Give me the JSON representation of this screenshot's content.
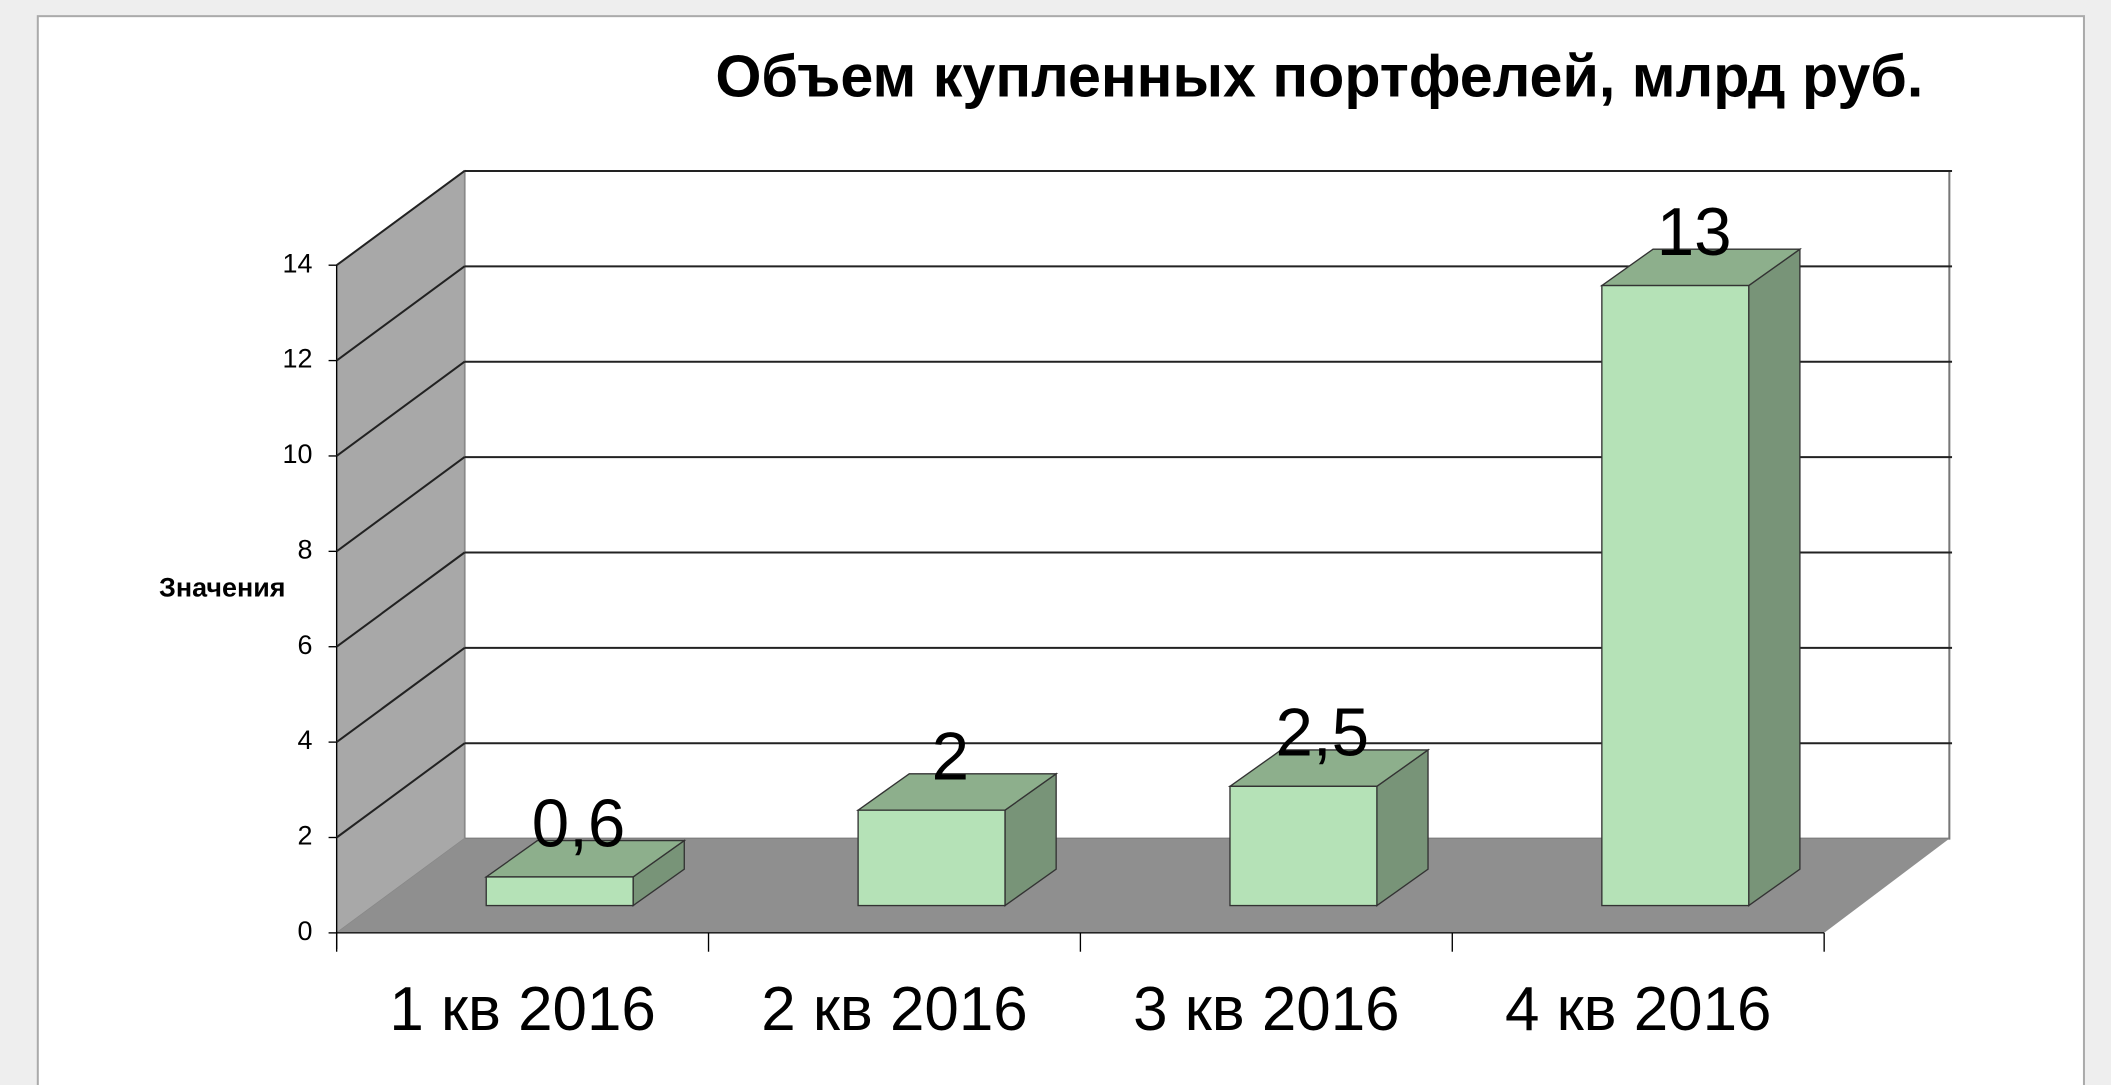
{
  "chart_data": {
    "type": "bar3d",
    "title": "Объем купленных портфелей, млрд руб.",
    "y_label": "Значения",
    "categories": [
      "1 кв 2016",
      "2 кв 2016",
      "3 кв 2016",
      "4 кв 2016"
    ],
    "values": [
      0.6,
      2,
      2.5,
      13
    ],
    "value_labels": [
      "0,6",
      "2",
      "2,5",
      "13"
    ],
    "color": "#b5e2b7",
    "ylim": [
      0,
      14
    ],
    "yticks": [
      0,
      2,
      4,
      6,
      8,
      10,
      12,
      14
    ],
    "grid": true
  }
}
